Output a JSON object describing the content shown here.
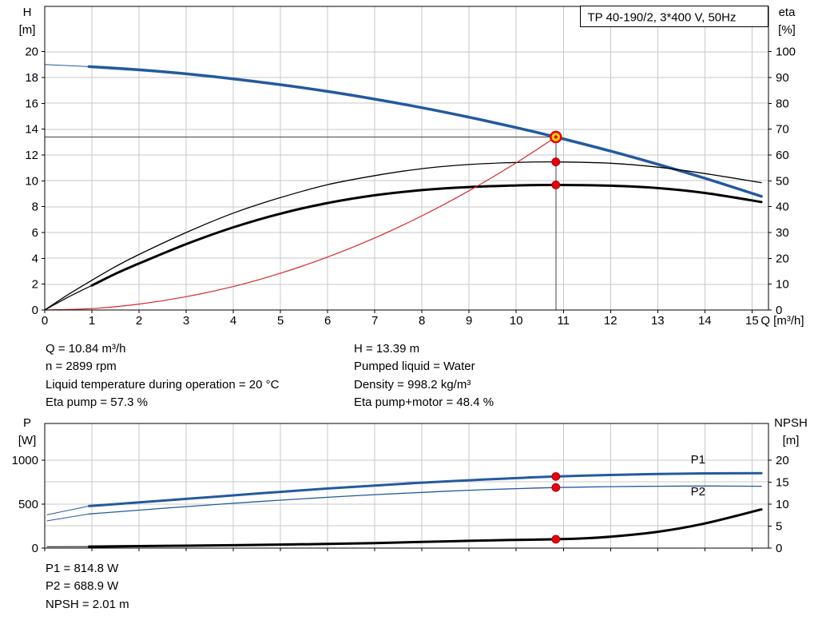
{
  "colors": {
    "blue": "#235a9d",
    "black": "#000000",
    "red": "#d42a2a",
    "marker_red": "#e8000d",
    "marker_yellow": "#ffd800",
    "grid": "#c9c9c9",
    "axis": "#000000",
    "crosshair": "#444444"
  },
  "info_top": {
    "left": [
      "Q = 10.84 m³/h",
      "n = 2899 rpm",
      "Liquid temperature during operation = 20 °C",
      "Eta pump = 57.3 %"
    ],
    "right": [
      "H = 13.39 m",
      "Pumped liquid = Water",
      "Density = 998.2 kg/m³",
      "Eta pump+motor = 48.4 %"
    ]
  },
  "info_bottom": [
    "P1 = 814.8 W",
    "P2 = 688.9 W",
    "NPSH = 2.01 m"
  ],
  "chart_data": [
    {
      "type": "line",
      "title": "TP 40-190/2, 3*400 V, 50Hz",
      "x_label": "Q [m³/h]",
      "xlim": [
        0,
        15.35
      ],
      "x_ticks": [
        0,
        1,
        2,
        3,
        4,
        5,
        6,
        7,
        8,
        9,
        10,
        11,
        12,
        13,
        14,
        15
      ],
      "show_x_labels": true,
      "grid": true,
      "y_left": {
        "label": [
          "H",
          "[m]"
        ],
        "lim": [
          0,
          23.5
        ],
        "ticks": [
          0,
          2,
          4,
          6,
          8,
          10,
          12,
          14,
          16,
          18,
          20
        ]
      },
      "y_right": {
        "label": [
          "eta",
          "[%]"
        ],
        "lim": [
          0,
          117.5
        ],
        "ticks": [
          0,
          10,
          20,
          30,
          40,
          50,
          60,
          70,
          80,
          90,
          100
        ]
      },
      "series": [
        {
          "name": "head-curve-lead",
          "color": "#235a9d",
          "width": 1,
          "axis": "left",
          "points": [
            [
              0,
              19.0
            ],
            [
              0.94,
              18.84
            ]
          ]
        },
        {
          "name": "head-curve",
          "color": "#235a9d",
          "width": 3.5,
          "axis": "left",
          "points": [
            [
              0.94,
              18.84
            ],
            [
              2,
              18.59
            ],
            [
              3,
              18.28
            ],
            [
              4,
              17.89
            ],
            [
              5,
              17.44
            ],
            [
              6,
              16.92
            ],
            [
              7,
              16.32
            ],
            [
              8,
              15.66
            ],
            [
              9,
              14.92
            ],
            [
              10,
              14.12
            ],
            [
              10.84,
              13.39
            ],
            [
              12,
              12.3
            ],
            [
              13,
              11.28
            ],
            [
              14,
              10.2
            ],
            [
              15.2,
              8.8
            ]
          ]
        },
        {
          "name": "eta-pump-curve",
          "color": "#000000",
          "width": 1.3,
          "axis": "right",
          "points": [
            [
              0,
              0
            ],
            [
              0.5,
              6
            ],
            [
              1,
              11.5
            ],
            [
              1.5,
              16.8
            ],
            [
              2,
              21.5
            ],
            [
              3,
              30
            ],
            [
              4,
              37.5
            ],
            [
              5,
              43.5
            ],
            [
              6,
              48.5
            ],
            [
              7,
              52
            ],
            [
              8,
              54.7
            ],
            [
              9,
              56.3
            ],
            [
              10,
              57.1
            ],
            [
              10.84,
              57.3
            ],
            [
              12,
              56.8
            ],
            [
              13,
              55.3
            ],
            [
              14,
              52.8
            ],
            [
              15.2,
              49.3
            ]
          ]
        },
        {
          "name": "eta-pump-motor-curve-lead",
          "color": "#000000",
          "width": 1.2,
          "axis": "right",
          "points": [
            [
              0,
              0
            ],
            [
              0.5,
              5
            ],
            [
              1,
              9.5
            ]
          ]
        },
        {
          "name": "eta-pump-motor-curve",
          "color": "#000000",
          "width": 3,
          "axis": "right",
          "points": [
            [
              1,
              9.5
            ],
            [
              1.5,
              14
            ],
            [
              2,
              18
            ],
            [
              3,
              25.5
            ],
            [
              4,
              32
            ],
            [
              5,
              37.3
            ],
            [
              6,
              41.4
            ],
            [
              7,
              44.4
            ],
            [
              8,
              46.4
            ],
            [
              9,
              47.6
            ],
            [
              10,
              48.2
            ],
            [
              10.84,
              48.4
            ],
            [
              12,
              48.1
            ],
            [
              13,
              47.2
            ],
            [
              14,
              45.3
            ],
            [
              15.2,
              41.8
            ]
          ]
        },
        {
          "name": "system-curve",
          "color": "#d42a2a",
          "width": 1.2,
          "axis": "left",
          "points": [
            [
              0,
              0
            ],
            [
              1,
              0.11
            ],
            [
              2,
              0.46
            ],
            [
              3,
              1.03
            ],
            [
              4,
              1.82
            ],
            [
              5,
              2.85
            ],
            [
              6,
              4.1
            ],
            [
              7,
              5.58
            ],
            [
              8,
              7.29
            ],
            [
              9,
              9.23
            ],
            [
              10,
              11.39
            ],
            [
              10.84,
              13.39
            ]
          ]
        }
      ],
      "crosshair": {
        "x": 10.84,
        "value": 13.39,
        "axis": "left"
      },
      "markers": [
        {
          "x": 10.84,
          "value": 13.39,
          "axis": "left",
          "style": "duty",
          "name": "duty-point-marker"
        },
        {
          "x": 10.84,
          "value": 57.3,
          "axis": "right",
          "style": "dot",
          "name": "eta-pump-marker"
        },
        {
          "x": 10.84,
          "value": 48.4,
          "axis": "right",
          "style": "dot",
          "name": "eta-pump-motor-marker"
        }
      ],
      "labels": []
    },
    {
      "type": "line",
      "x_label": "",
      "xlim": [
        0,
        15.35
      ],
      "x_ticks": [
        0,
        1,
        2,
        3,
        4,
        5,
        6,
        7,
        8,
        9,
        10,
        11,
        12,
        13,
        14,
        15
      ],
      "show_x_labels": false,
      "grid": true,
      "y_left": {
        "label": [
          "P",
          "[W]"
        ],
        "lim": [
          0,
          1418
        ],
        "ticks": [
          0,
          500,
          1000
        ]
      },
      "y_right": {
        "label": [
          "NPSH",
          "[m]"
        ],
        "lim": [
          0,
          28.36
        ],
        "ticks": [
          0,
          5,
          10,
          15,
          20
        ]
      },
      "series": [
        {
          "name": "p1-curve-lead",
          "color": "#235a9d",
          "width": 1,
          "axis": "left",
          "points": [
            [
              0.05,
              380
            ],
            [
              0.94,
              478
            ]
          ]
        },
        {
          "name": "p1-curve",
          "color": "#235a9d",
          "width": 3,
          "axis": "left",
          "points": [
            [
              0.94,
              478
            ],
            [
              2,
              520
            ],
            [
              3,
              560
            ],
            [
              4,
              600
            ],
            [
              5,
              640
            ],
            [
              6,
              678
            ],
            [
              7,
              712
            ],
            [
              8,
              744
            ],
            [
              9,
              772
            ],
            [
              10,
              796
            ],
            [
              10.84,
              814.8
            ],
            [
              12,
              832
            ],
            [
              13,
              843
            ],
            [
              14,
              850
            ],
            [
              15.2,
              853
            ]
          ]
        },
        {
          "name": "p2-curve-lead",
          "color": "#235a9d",
          "width": 1,
          "axis": "left",
          "points": [
            [
              0.05,
              310
            ],
            [
              0.94,
              388
            ]
          ]
        },
        {
          "name": "p2-curve",
          "color": "#235a9d",
          "width": 1.3,
          "axis": "left",
          "points": [
            [
              0.94,
              388
            ],
            [
              2,
              432
            ],
            [
              3,
              472
            ],
            [
              4,
              510
            ],
            [
              5,
              545
            ],
            [
              6,
              578
            ],
            [
              7,
              608
            ],
            [
              8,
              634
            ],
            [
              9,
              658
            ],
            [
              10,
              676
            ],
            [
              10.84,
              688.9
            ],
            [
              12,
              699
            ],
            [
              13,
              704
            ],
            [
              14,
              706
            ],
            [
              15.2,
              704
            ]
          ]
        },
        {
          "name": "npsh-curve-lead",
          "color": "#000000",
          "width": 1,
          "axis": "right",
          "points": [
            [
              0.05,
              0.3
            ],
            [
              0.94,
              0.35
            ]
          ]
        },
        {
          "name": "npsh-curve",
          "color": "#000000",
          "width": 3,
          "axis": "right",
          "points": [
            [
              0.94,
              0.35
            ],
            [
              2,
              0.45
            ],
            [
              3,
              0.55
            ],
            [
              4,
              0.65
            ],
            [
              5,
              0.8
            ],
            [
              6,
              0.95
            ],
            [
              7,
              1.15
            ],
            [
              8,
              1.4
            ],
            [
              9,
              1.65
            ],
            [
              10,
              1.88
            ],
            [
              10.84,
              2.01
            ],
            [
              11.5,
              2.25
            ],
            [
              12,
              2.6
            ],
            [
              13,
              3.7
            ],
            [
              14,
              5.6
            ],
            [
              15.2,
              8.8
            ]
          ]
        }
      ],
      "markers": [
        {
          "x": 10.84,
          "value": 814.8,
          "axis": "left",
          "style": "dot",
          "name": "p1-marker"
        },
        {
          "x": 10.84,
          "value": 688.9,
          "axis": "left",
          "style": "dot",
          "name": "p2-marker"
        },
        {
          "x": 10.84,
          "value": 2.01,
          "axis": "right",
          "style": "dot",
          "name": "npsh-marker"
        }
      ],
      "labels": [
        {
          "text": "P1",
          "x": 13.7,
          "value": 965,
          "axis": "left",
          "color": "#235a9d",
          "name": "p1-series-label"
        },
        {
          "text": "P2",
          "x": 13.7,
          "value": 600,
          "axis": "left",
          "color": "#235a9d",
          "name": "p2-series-label"
        }
      ]
    }
  ]
}
